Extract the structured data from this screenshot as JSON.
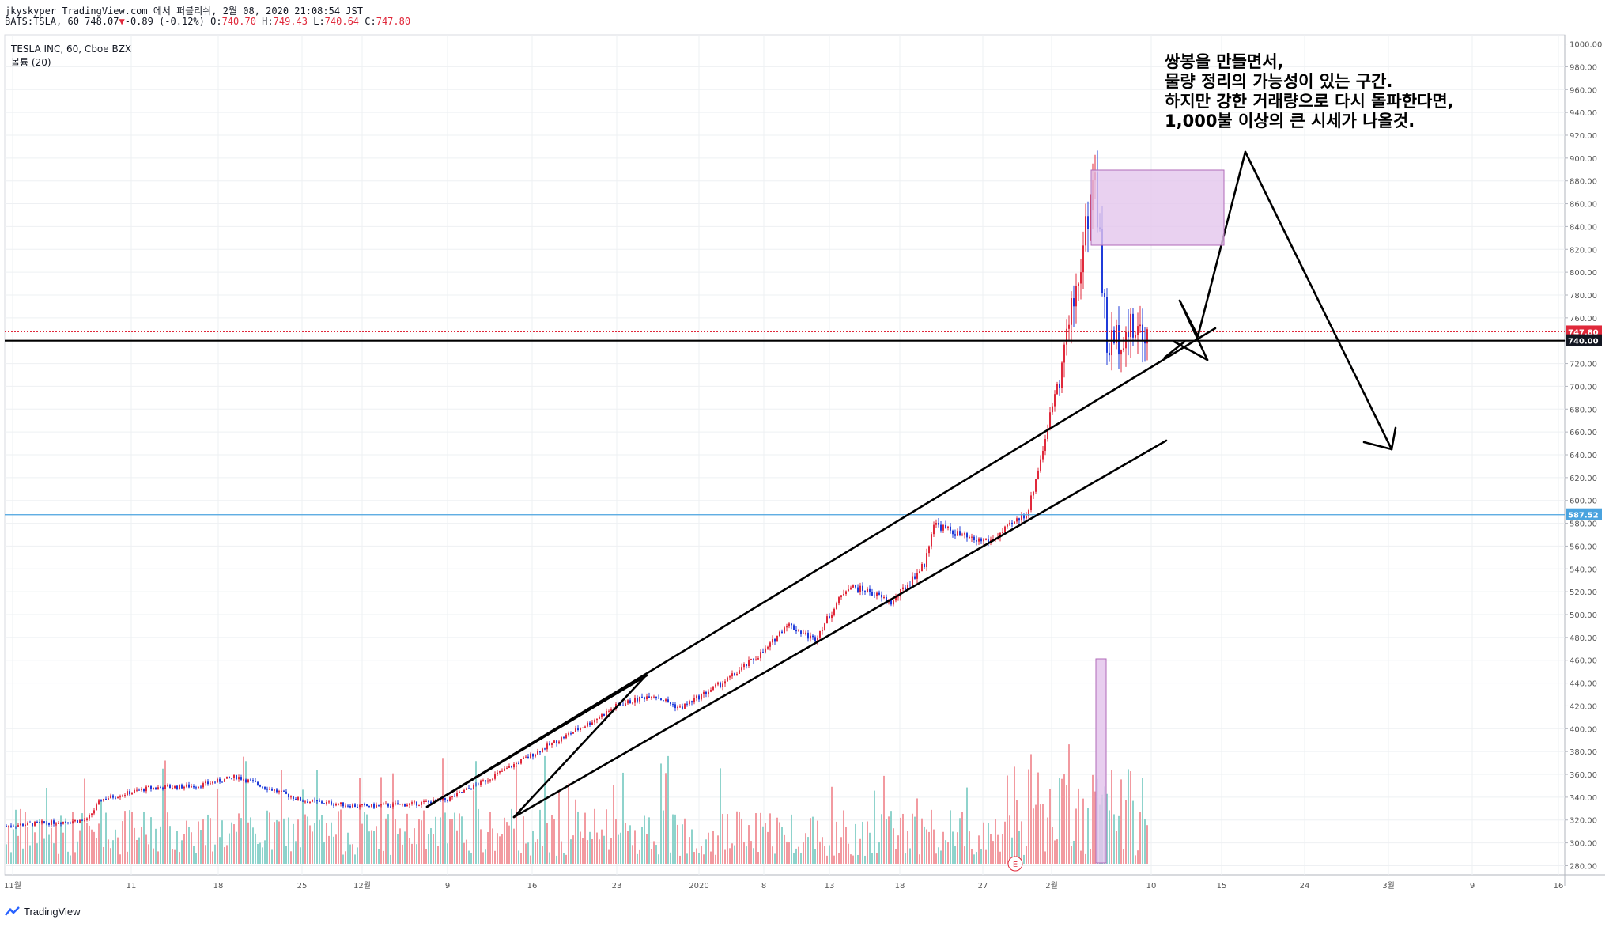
{
  "header": {
    "line1": "jkyskyper TradingView.com 에서 퍼블리쉬, 2월 08, 2020 21:08:54 JST",
    "line2_prefix": "BATS:TSLA, 60 748.07",
    "line2_change": "-0.89 (-0.12%)",
    "line2_o_label": "O:",
    "line2_o": "740.70",
    "line2_h_label": "H:",
    "line2_h": "749.43",
    "line2_l_label": "L:",
    "line2_l": "740.64",
    "line2_c_label": "C:",
    "line2_c": "747.80",
    "symbol_title": "TESLA INC, 60, Cboe BZX",
    "volume_label": "볼륨 (20)"
  },
  "annotation": {
    "line1": "쌍봉을 만들면서,",
    "line2": "물량 정리의 가능성이 있는 구간.",
    "line3": "하지만 강한 거래량으로 다시 돌파한다면,",
    "line4": "1,000불 이상의 큰 시세가 나올것."
  },
  "footer": {
    "brand": "TradingView"
  },
  "colors": {
    "up": "#e0293b",
    "down": "#1f3bd9",
    "vol_up": "#f29aa0",
    "vol_down": "#8fd3cc",
    "hline_blue": "#4aa3df",
    "box_fill": "#e4c6ec",
    "box_stroke": "#b06ab8"
  },
  "chart_data": {
    "type": "candlestick",
    "symbol": "BATS:TSLA",
    "interval": "60",
    "ylim": [
      272,
      1008
    ],
    "y_ticks": [
      "1000.00",
      "980.00",
      "960.00",
      "940.00",
      "920.00",
      "900.00",
      "880.00",
      "860.00",
      "840.00",
      "820.00",
      "800.00",
      "780.00",
      "760.00",
      "740.00",
      "720.00",
      "700.00",
      "680.00",
      "660.00",
      "640.00",
      "620.00",
      "600.00",
      "580.00",
      "560.00",
      "540.00",
      "520.00",
      "500.00",
      "480.00",
      "460.00",
      "440.00",
      "420.00",
      "400.00",
      "380.00",
      "360.00",
      "340.00",
      "320.00",
      "300.00",
      "280.00"
    ],
    "x_ticks": [
      "11월",
      "11",
      "18",
      "25",
      "12월",
      "9",
      "16",
      "23",
      "2020",
      "8",
      "13",
      "18",
      "27",
      "2월",
      "10",
      "15",
      "24",
      "3월",
      "9",
      "16"
    ],
    "price_labels": [
      {
        "text": "747.80",
        "value": 747.8,
        "color": "#e0293b"
      },
      {
        "text": "740.00",
        "value": 740,
        "color": "#131722"
      },
      {
        "text": "587.52",
        "value": 587.52,
        "color": "#4aa3df"
      }
    ],
    "last_close": 747.8,
    "horizontal_lines": [
      {
        "value": 740,
        "color": "#000000"
      },
      {
        "value": 587.52,
        "color": "#4aa3df"
      }
    ],
    "earnings_marker": "E",
    "price_path": [
      {
        "x": "Nov 1",
        "close": 315
      },
      {
        "x": "Nov 6",
        "close": 320
      },
      {
        "x": "Nov 8",
        "close": 338
      },
      {
        "x": "Nov 14",
        "close": 348
      },
      {
        "x": "Nov 20",
        "close": 350
      },
      {
        "x": "Nov 22",
        "close": 358
      },
      {
        "x": "Nov 25",
        "close": 337
      },
      {
        "x": "Dec 2",
        "close": 332
      },
      {
        "x": "Dec 6",
        "close": 334
      },
      {
        "x": "Dec 9",
        "close": 338
      },
      {
        "x": "Dec 13",
        "close": 357
      },
      {
        "x": "Dec 17",
        "close": 380
      },
      {
        "x": "Dec 20",
        "close": 405
      },
      {
        "x": "Dec 23",
        "close": 420
      },
      {
        "x": "Dec 27",
        "close": 430
      },
      {
        "x": "Dec 31",
        "close": 418
      },
      {
        "x": "Jan 3",
        "close": 443
      },
      {
        "x": "Jan 7",
        "close": 470
      },
      {
        "x": "Jan 9",
        "close": 492
      },
      {
        "x": "Jan 10",
        "close": 478
      },
      {
        "x": "Jan 13",
        "close": 525
      },
      {
        "x": "Jan 15",
        "close": 520
      },
      {
        "x": "Jan 17",
        "close": 510
      },
      {
        "x": "Jan 21",
        "close": 545
      },
      {
        "x": "Jan 22",
        "close": 580
      },
      {
        "x": "Jan 24",
        "close": 565
      },
      {
        "x": "Jan 28",
        "close": 565
      },
      {
        "x": "Jan 30",
        "close": 590
      },
      {
        "x": "Jan 31",
        "close": 648
      },
      {
        "x": "Feb 3",
        "close": 780
      },
      {
        "x": "Feb 4",
        "close": 887
      },
      {
        "x": "Feb 5",
        "close": 734
      },
      {
        "x": "Feb 6",
        "close": 748
      },
      {
        "x": "Feb 7",
        "close": 747.8
      }
    ]
  }
}
